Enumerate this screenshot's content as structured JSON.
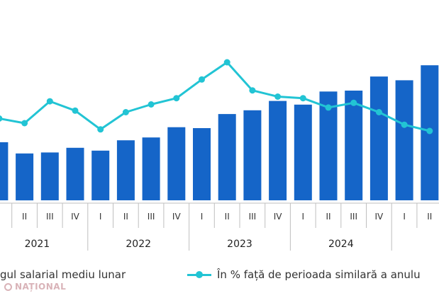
{
  "chart_data": {
    "type": "bar",
    "categories": [
      "I",
      "II",
      "III",
      "IV",
      "I",
      "II",
      "III",
      "IV",
      "I",
      "II",
      "III",
      "IV",
      "I",
      "II",
      "III",
      "IV",
      "I",
      "II"
    ],
    "groups": [
      "2021",
      "2022",
      "2023",
      "2024"
    ],
    "series": [
      {
        "name": "...gul salarial mediu lunar",
        "type": "bar",
        "values": [
          31,
          25,
          25.5,
          28,
          26.5,
          32,
          33.5,
          39,
          38.5,
          46,
          48,
          53,
          51,
          58,
          58.5,
          66,
          64,
          72
        ]
      },
      {
        "name": "În % față de perioada similară a anulu...",
        "type": "line",
        "values": [
          108,
          105,
          119,
          113,
          101,
          112,
          117,
          121,
          133,
          144,
          126,
          122,
          121,
          115,
          118,
          112,
          104,
          100
        ]
      }
    ],
    "colors": {
      "bar": "#1565C8",
      "line": "#22C4D4"
    },
    "legend_position": "bottom",
    "grid": false
  },
  "legend": {
    "bar_label": "gul salarial mediu lunar",
    "line_label": "În % față de perioada similară a anulu"
  },
  "watermark": {
    "text": "NAȚIONAL"
  }
}
